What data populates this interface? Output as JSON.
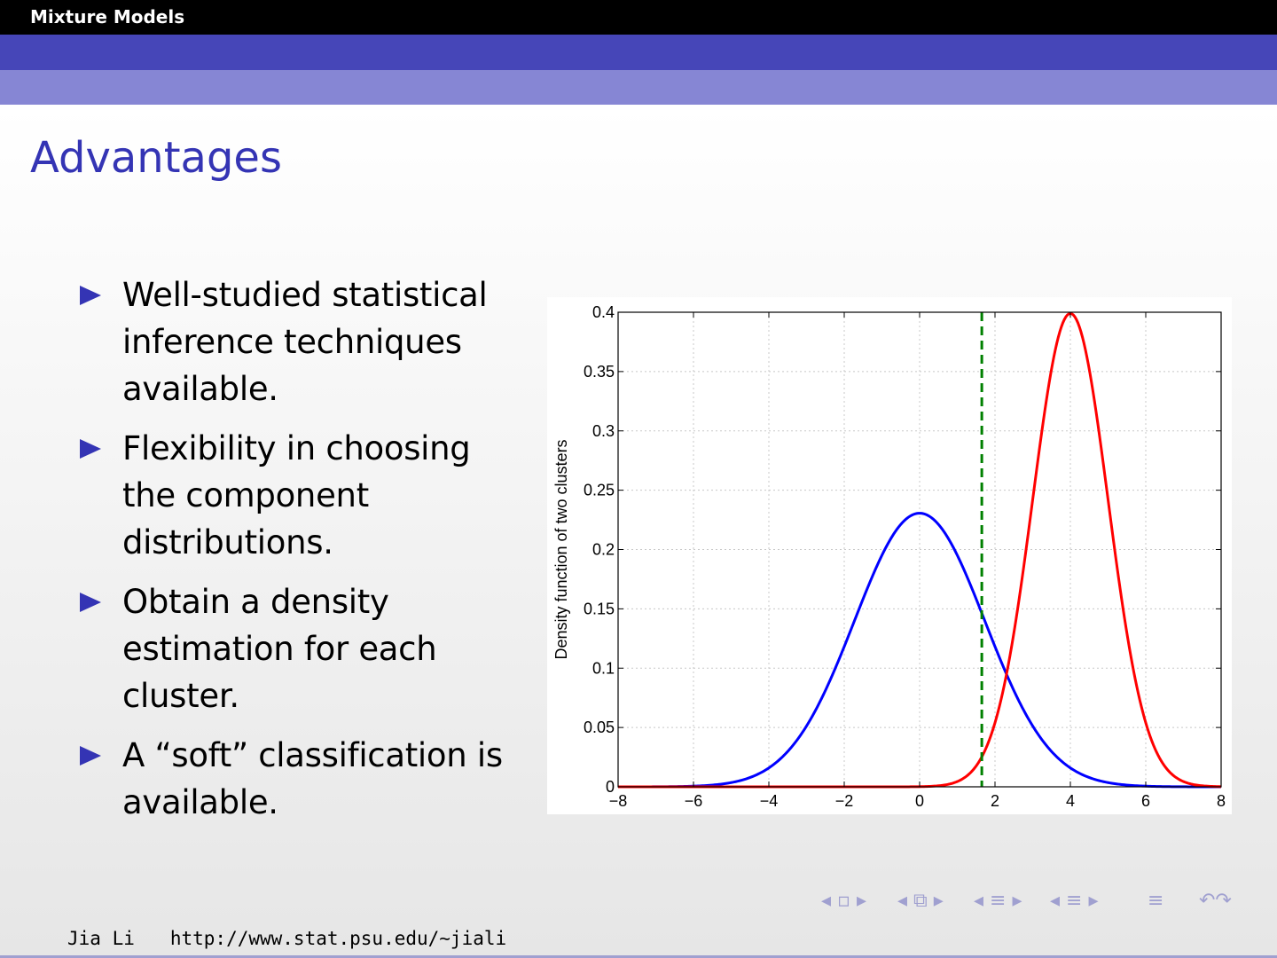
{
  "header": {
    "title": "Mixture Models"
  },
  "frame": {
    "title": "Advantages"
  },
  "bullets": [
    "Well-studied statistical inference techniques available.",
    "Flexibility in choosing the component distributions.",
    "Obtain a density estimation for each cluster.",
    "A “soft” classification is available."
  ],
  "footer": {
    "author": "Jia Li",
    "url": "http://www.stat.psu.edu/∼jiali"
  },
  "nav": {
    "symbols": [
      "◂ ▫ ▸",
      "◂ ⧉ ▸",
      "◂ ≡ ▸",
      "◂ ≡ ▸",
      "≡",
      "↶↷"
    ]
  },
  "colors": {
    "accent": "#3434b4",
    "series1": "#0000ff",
    "series2": "#ff0000",
    "boundary": "#008000"
  },
  "chart_data": {
    "type": "line",
    "title": "",
    "xlabel": "",
    "ylabel": "Density function of two clusters",
    "xlim": [
      -8,
      8
    ],
    "ylim": [
      0,
      0.4
    ],
    "xticks": [
      "−8",
      "−6",
      "−4",
      "−2",
      "0",
      "2",
      "4",
      "6",
      "8"
    ],
    "yticks": [
      "0",
      "0.05",
      "0.1",
      "0.15",
      "0.2",
      "0.25",
      "0.3",
      "0.35",
      "0.4"
    ],
    "grid": true,
    "series": [
      {
        "color": "#0000ff",
        "style": "solid",
        "curve": "normal",
        "mean": 0,
        "sd": 1.73,
        "weight": 1.0
      },
      {
        "color": "#ff0000",
        "style": "solid",
        "curve": "normal",
        "mean": 4,
        "sd": 1.0,
        "weight": 1.0
      }
    ],
    "vline": {
      "x": 1.65,
      "color": "#008000",
      "style": "dashed"
    }
  }
}
